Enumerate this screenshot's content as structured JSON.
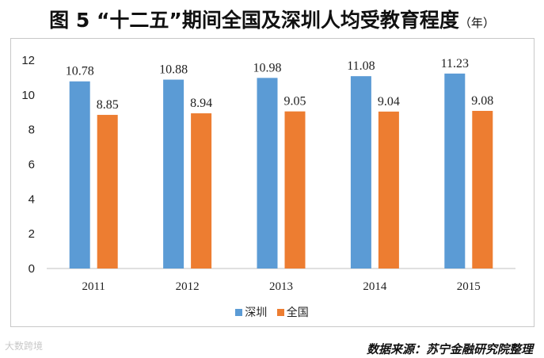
{
  "title": {
    "main": "图 5 “十二五”期间全国及深圳人均受教育程度",
    "unit": "（年）"
  },
  "source": "数据来源：苏宁金融研究院整理",
  "watermark": "大数跨境",
  "colors": {
    "shenzhen": "#5b9bd5",
    "national": "#ed7d31"
  },
  "chart_data": {
    "type": "bar",
    "title": "图 5 “十二五”期间全国及深圳人均受教育程度（年）",
    "categories": [
      "2011",
      "2012",
      "2013",
      "2014",
      "2015"
    ],
    "series": [
      {
        "name": "深圳",
        "values": [
          10.78,
          10.88,
          10.98,
          11.08,
          11.23
        ],
        "labels": [
          "10.78",
          "10.88",
          "10.98",
          "11.08",
          "11.23"
        ]
      },
      {
        "name": "全国",
        "values": [
          8.85,
          8.94,
          9.05,
          9.04,
          9.08
        ],
        "labels": [
          "8.85",
          "8.94",
          "9.05",
          "9.04",
          "9.08"
        ]
      }
    ],
    "ylim": [
      0,
      12
    ],
    "yticks": [
      "0",
      "2",
      "4",
      "6",
      "8",
      "10",
      "12"
    ],
    "xlabel": "",
    "ylabel": "",
    "grid": false,
    "legend": "bottom"
  }
}
